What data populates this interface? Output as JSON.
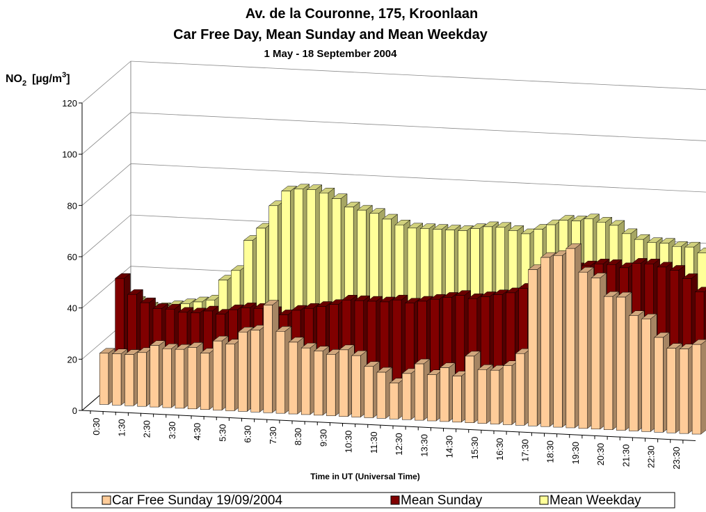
{
  "chart_data": {
    "type": "bar3d",
    "title": [
      "Av. de la Couronne, 175, Kroonlaan",
      "Car Free Day, Mean Sunday and Mean Weekday"
    ],
    "subtitle": "1 May - 18 September 2004",
    "y_label": {
      "base": "NO",
      "sub": "2",
      "unit": "[µg/m",
      "sup": "3",
      "close": "]"
    },
    "x_label": "Time in UT (Universal Time)",
    "categories": [
      "0:30",
      null,
      "1:30",
      null,
      "2:30",
      null,
      "3:30",
      null,
      "4:30",
      null,
      "5:30",
      null,
      "6:30",
      null,
      "7:30",
      null,
      "8:30",
      null,
      "9:30",
      null,
      "10:30",
      null,
      "11:30",
      null,
      "12:30",
      null,
      "13:30",
      null,
      "14:30",
      null,
      "15:30",
      null,
      "16:30",
      null,
      "17:30",
      null,
      "18:30",
      null,
      "19:30",
      null,
      "20:30",
      null,
      "21:30",
      null,
      "22:30",
      null,
      "23:30",
      null
    ],
    "ylim": [
      0,
      120
    ],
    "yticks": [
      0,
      20,
      40,
      60,
      80,
      100,
      120
    ],
    "grid": true,
    "series": [
      {
        "name": "Mean Weekday",
        "color": "#ffff99",
        "values": [
          30,
          28,
          28,
          29,
          30,
          31,
          32,
          40,
          44,
          56,
          61,
          70,
          76,
          77,
          77,
          76,
          74,
          71,
          70,
          69,
          67,
          65,
          64,
          64,
          64,
          64,
          64,
          65,
          66,
          66,
          65,
          64,
          66,
          68,
          70,
          70,
          71,
          70,
          69,
          66,
          64,
          63,
          63,
          62,
          62,
          60,
          54,
          49
        ]
      },
      {
        "name": "Mean Sunday",
        "color": "#800000",
        "values": [
          44,
          38,
          35,
          33,
          33,
          32,
          32,
          33,
          32,
          34,
          35,
          35,
          34,
          33,
          35,
          36,
          37,
          38,
          40,
          40,
          40,
          40,
          41,
          40,
          41,
          42,
          43,
          44,
          43,
          44,
          45,
          46,
          48,
          51,
          55,
          56,
          57,
          58,
          59,
          59,
          58,
          60,
          60,
          59,
          58,
          55,
          50,
          46
        ]
      },
      {
        "name": "Car Free Sunday 19/09/2004",
        "color": "#ffcc99",
        "values": [
          20,
          20,
          20,
          21,
          24,
          23,
          23,
          24,
          22,
          27,
          26,
          31,
          32,
          42,
          32,
          28,
          26,
          25,
          24,
          26,
          24,
          20,
          18,
          14,
          18,
          22,
          18,
          21,
          18,
          26,
          21,
          21,
          23,
          28,
          61,
          66,
          67,
          70,
          61,
          59,
          52,
          52,
          45,
          44,
          37,
          33,
          33,
          35
        ]
      }
    ],
    "legend": "bottom"
  }
}
